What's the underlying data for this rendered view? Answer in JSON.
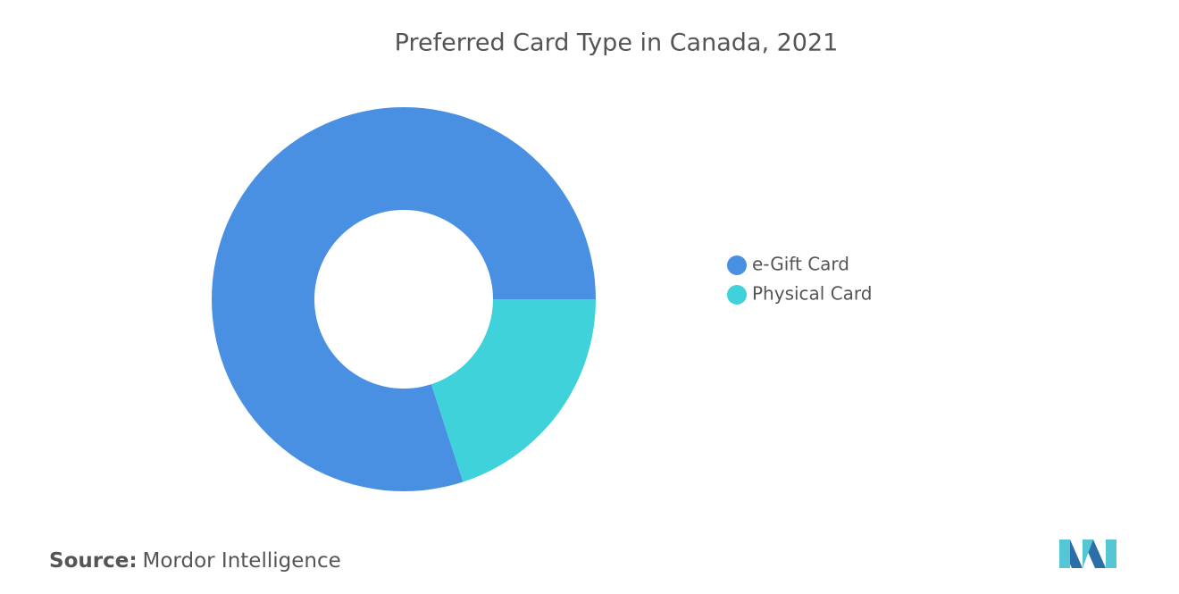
{
  "chart_data": {
    "type": "donut",
    "title": "Preferred Card Type in Canada, 2021",
    "categories": [
      "e-Gift Card",
      "Physical Card"
    ],
    "values": [
      80,
      20
    ],
    "colors": [
      "#4a90e2",
      "#40d2da"
    ],
    "legend": "right"
  },
  "footer": {
    "source_label": "Source:",
    "source": "Mordor Intelligence"
  }
}
